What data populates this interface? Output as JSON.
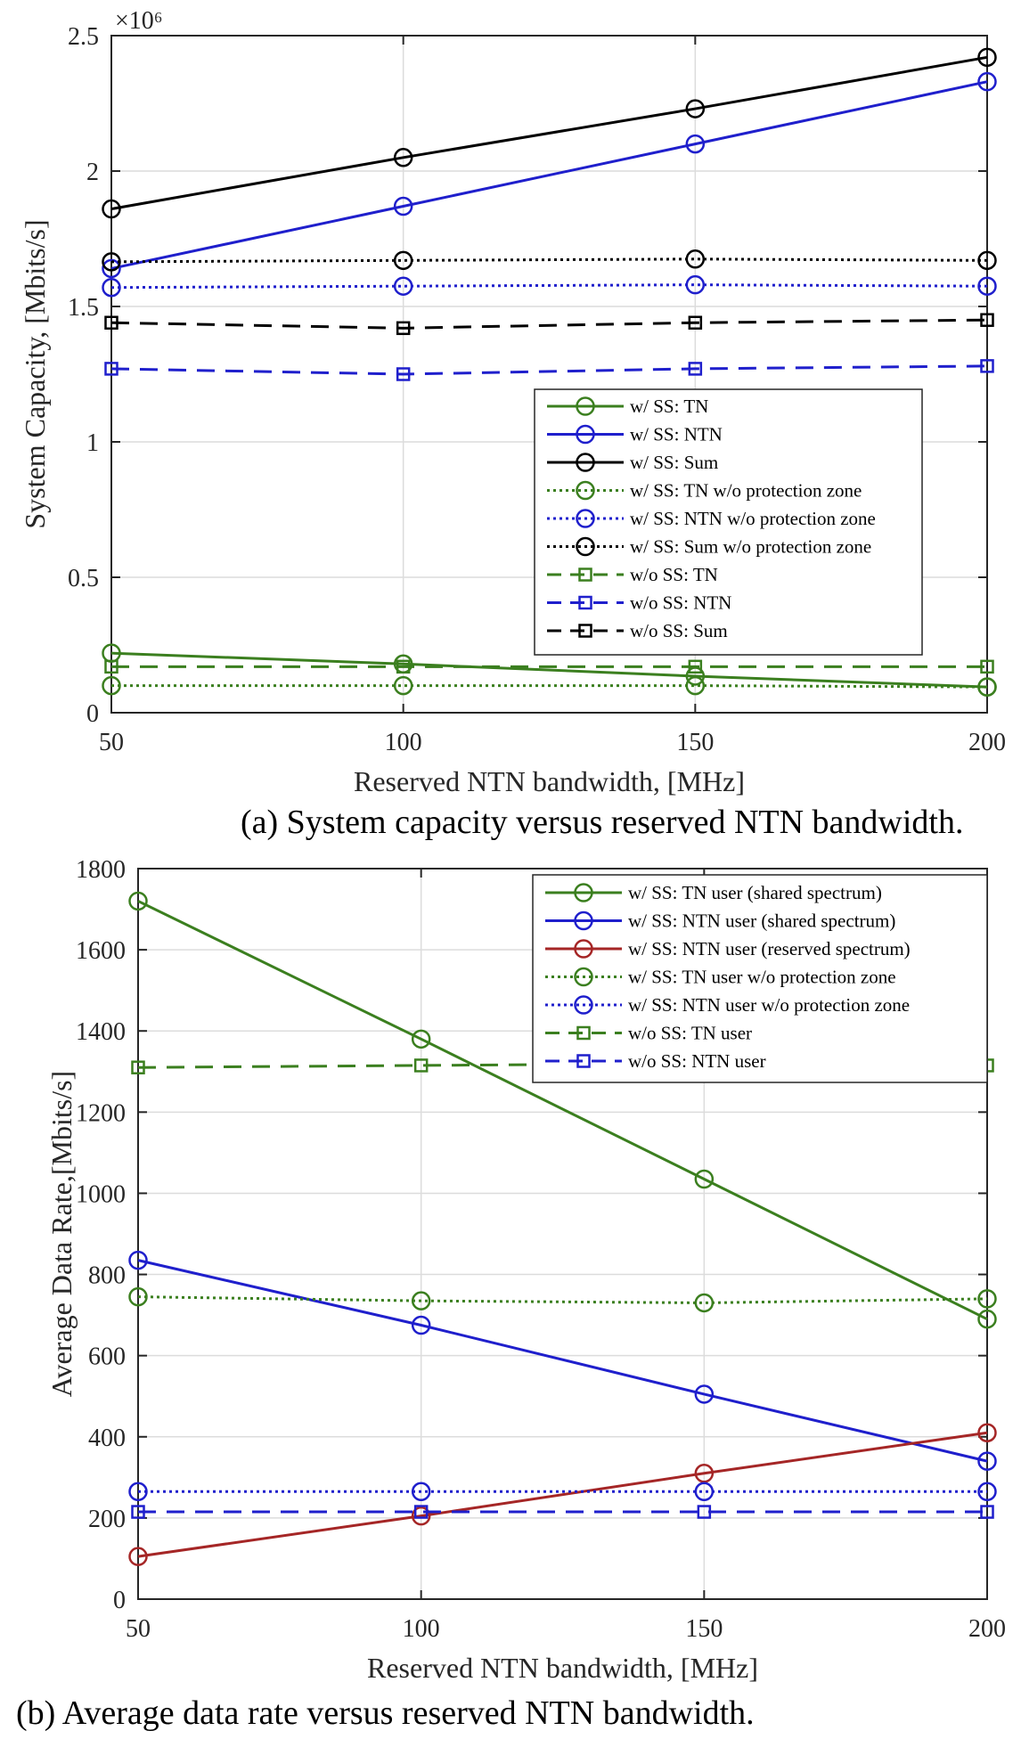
{
  "colors": {
    "green": "#3b7f1f",
    "blue": "#1f1fcc",
    "black": "#000000",
    "red": "#a52626",
    "grid": "#dcdcdc",
    "axis": "#262626"
  },
  "chart_data": [
    {
      "type": "line",
      "title": "",
      "xlabel": "Reserved NTN bandwidth, [MHz]",
      "ylabel": "System Capacity, [Mbits/s]",
      "caption": "(a) System capacity versus reserved NTN bandwidth.",
      "y_multiplier": "×10⁶",
      "x": [
        50,
        100,
        150,
        200
      ],
      "xlim": [
        50,
        200
      ],
      "ylim": [
        0,
        2.5
      ],
      "xticks": [
        "50",
        "100",
        "150",
        "200"
      ],
      "yticks": [
        {
          "v": 0,
          "label": "0"
        },
        {
          "v": 0.5,
          "label": "0.5"
        },
        {
          "v": 1,
          "label": "1"
        },
        {
          "v": 1.5,
          "label": "1.5"
        },
        {
          "v": 2,
          "label": "2"
        },
        {
          "v": 2.5,
          "label": "2.5"
        }
      ],
      "grid": true,
      "legend_position": "center-right",
      "series": [
        {
          "name": "w/ SS: TN",
          "color": "green",
          "style": "solid",
          "marker": "circle",
          "values": [
            0.22,
            0.18,
            0.135,
            0.095
          ]
        },
        {
          "name": "w/ SS: NTN",
          "color": "blue",
          "style": "solid",
          "marker": "circle",
          "values": [
            1.64,
            1.87,
            2.1,
            2.33
          ]
        },
        {
          "name": "w/ SS: Sum",
          "color": "black",
          "style": "solid",
          "marker": "circle",
          "values": [
            1.86,
            2.05,
            2.23,
            2.42
          ]
        },
        {
          "name": "w/ SS: TN w/o protection zone",
          "color": "green",
          "style": "dotted",
          "marker": "circle",
          "values": [
            0.1,
            0.1,
            0.1,
            0.095
          ]
        },
        {
          "name": "w/ SS: NTN w/o protection zone",
          "color": "blue",
          "style": "dotted",
          "marker": "circle",
          "values": [
            1.57,
            1.575,
            1.58,
            1.575
          ]
        },
        {
          "name": "w/ SS: Sum w/o protection zone",
          "color": "black",
          "style": "dotted",
          "marker": "circle",
          "values": [
            1.665,
            1.67,
            1.675,
            1.67
          ]
        },
        {
          "name": "w/o SS: TN",
          "color": "green",
          "style": "dashed",
          "marker": "square",
          "values": [
            0.17,
            0.17,
            0.17,
            0.17
          ]
        },
        {
          "name": "w/o SS: NTN",
          "color": "blue",
          "style": "dashed",
          "marker": "square",
          "values": [
            1.27,
            1.25,
            1.27,
            1.28
          ]
        },
        {
          "name": "w/o SS: Sum",
          "color": "black",
          "style": "dashed",
          "marker": "square",
          "values": [
            1.44,
            1.42,
            1.44,
            1.45
          ]
        }
      ]
    },
    {
      "type": "line",
      "title": "",
      "xlabel": "Reserved NTN bandwidth, [MHz]",
      "ylabel": "Average Data Rate,[Mbits/s]",
      "caption": "(b) Average data rate versus reserved NTN bandwidth.",
      "x": [
        50,
        100,
        150,
        200
      ],
      "xlim": [
        50,
        200
      ],
      "ylim": [
        0,
        1800
      ],
      "xticks": [
        "50",
        "100",
        "150",
        "200"
      ],
      "yticks": [
        {
          "v": 0,
          "label": "0"
        },
        {
          "v": 200,
          "label": "200"
        },
        {
          "v": 400,
          "label": "400"
        },
        {
          "v": 600,
          "label": "600"
        },
        {
          "v": 800,
          "label": "800"
        },
        {
          "v": 1000,
          "label": "1000"
        },
        {
          "v": 1200,
          "label": "1200"
        },
        {
          "v": 1400,
          "label": "1400"
        },
        {
          "v": 1600,
          "label": "1600"
        },
        {
          "v": 1800,
          "label": "1800"
        }
      ],
      "grid": true,
      "legend_position": "top-right",
      "series": [
        {
          "name": "w/ SS: TN user (shared spectrum)",
          "color": "green",
          "style": "solid",
          "marker": "circle",
          "values": [
            1720,
            1380,
            1035,
            690
          ]
        },
        {
          "name": "w/ SS: NTN user (shared spectrum)",
          "color": "blue",
          "style": "solid",
          "marker": "circle",
          "values": [
            835,
            675,
            505,
            340
          ]
        },
        {
          "name": "w/ SS: NTN user (reserved spectrum)",
          "color": "red",
          "style": "solid",
          "marker": "circle",
          "values": [
            105,
            205,
            310,
            410
          ]
        },
        {
          "name": "w/ SS: TN user w/o protection zone",
          "color": "green",
          "style": "dotted",
          "marker": "circle",
          "values": [
            745,
            735,
            730,
            740
          ]
        },
        {
          "name": "w/ SS: NTN user w/o protection zone",
          "color": "blue",
          "style": "dotted",
          "marker": "circle",
          "values": [
            265,
            265,
            265,
            265
          ]
        },
        {
          "name": "w/o SS: TN user",
          "color": "green",
          "style": "dashed",
          "marker": "square",
          "values": [
            1310,
            1315,
            1320,
            1315
          ]
        },
        {
          "name": "w/o SS: NTN user",
          "color": "blue",
          "style": "dashed",
          "marker": "square",
          "values": [
            215,
            215,
            215,
            215
          ]
        }
      ]
    }
  ]
}
